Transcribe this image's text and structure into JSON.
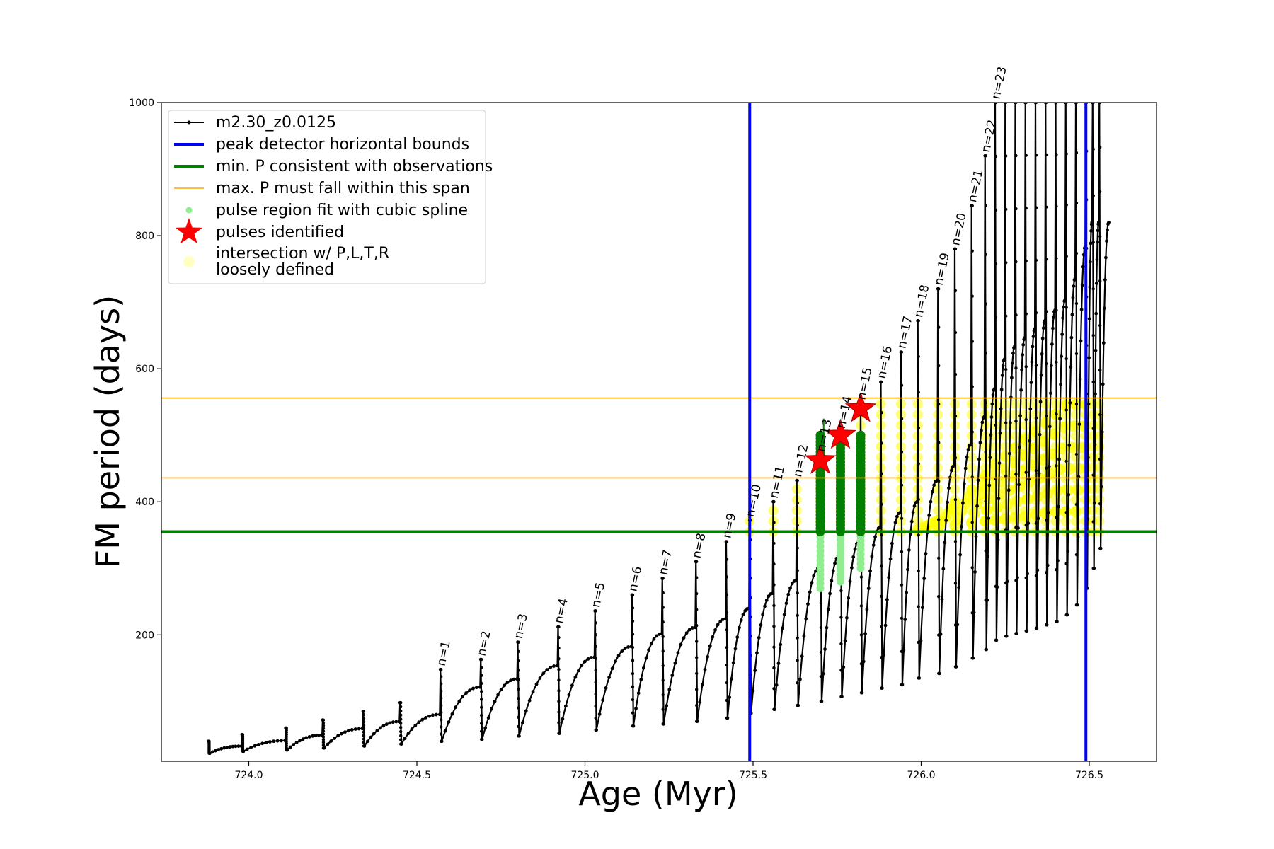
{
  "chart_data": {
    "type": "line",
    "title": "",
    "xlabel": "Age (Myr)",
    "ylabel": "FM period (days)",
    "xlim": [
      723.74,
      726.7
    ],
    "ylim": [
      10,
      1000
    ],
    "xticks": [
      "724.0",
      "724.5",
      "725.0",
      "725.5",
      "726.0",
      "726.5"
    ],
    "xtick_values": [
      724.0,
      724.5,
      725.0,
      725.5,
      726.0,
      726.5
    ],
    "yticks": [
      "200",
      "400",
      "600",
      "800",
      "1000"
    ],
    "ytick_values": [
      200,
      400,
      600,
      800,
      1000
    ],
    "grid": false,
    "legend_position": "upper-left",
    "colors": {
      "track": "#000000",
      "bounds": "#0000ff",
      "min_period": "#007f00",
      "max_span": "#ffa500",
      "spline": "#90ee90",
      "pulses": "#ff0000",
      "intersection": "#ffff00",
      "intersection_legend": "#ffffc0"
    },
    "legend": [
      {
        "label": "m2.30_z0.0125",
        "key": "track"
      },
      {
        "label": "peak detector horizontal bounds",
        "key": "bounds"
      },
      {
        "label": "min. P consistent with observations",
        "key": "min_period"
      },
      {
        "label": "max. P must fall within this span",
        "key": "max_span"
      },
      {
        "label": "pulse region fit with cubic spline",
        "key": "spline"
      },
      {
        "label": "pulses identified",
        "key": "pulses"
      },
      {
        "label": "intersection w/ P,L,T,R",
        "key": "intersection"
      },
      {
        "label": "loosely defined",
        "key": "intersection_note"
      }
    ],
    "vertical_bounds_x": [
      725.49,
      726.49
    ],
    "min_period_y": 355,
    "max_period_span_y": [
      436,
      556
    ],
    "pulses": [
      {
        "label": "n=1",
        "x": 724.57,
        "peak": 148,
        "min": 40
      },
      {
        "label": "n=2",
        "x": 724.69,
        "peak": 163,
        "min": 43
      },
      {
        "label": "n=3",
        "x": 724.8,
        "peak": 189,
        "min": 48
      },
      {
        "label": "n=4",
        "x": 724.92,
        "peak": 212,
        "min": 52
      },
      {
        "label": "n=5",
        "x": 725.03,
        "peak": 236,
        "min": 57
      },
      {
        "label": "n=6",
        "x": 725.14,
        "peak": 260,
        "min": 63
      },
      {
        "label": "n=7",
        "x": 725.23,
        "peak": 285,
        "min": 66
      },
      {
        "label": "n=8",
        "x": 725.33,
        "peak": 310,
        "min": 70
      },
      {
        "label": "n=9",
        "x": 725.42,
        "peak": 340,
        "min": 75
      },
      {
        "label": "n=10",
        "x": 725.49,
        "peak": 372,
        "min": 82
      },
      {
        "label": "n=11",
        "x": 725.56,
        "peak": 400,
        "min": 88
      },
      {
        "label": "n=12",
        "x": 725.63,
        "peak": 432,
        "min": 94
      },
      {
        "label": "n=13",
        "x": 725.7,
        "peak": 470,
        "min": 100
      },
      {
        "label": "n=14",
        "x": 725.76,
        "peak": 505,
        "min": 107
      },
      {
        "label": "n=15",
        "x": 725.82,
        "peak": 548,
        "min": 113
      },
      {
        "label": "n=16",
        "x": 725.88,
        "peak": 580,
        "min": 120
      },
      {
        "label": "n=17",
        "x": 725.94,
        "peak": 625,
        "min": 125
      },
      {
        "label": "n=18",
        "x": 725.99,
        "peak": 672,
        "min": 135
      },
      {
        "label": "n=19",
        "x": 726.05,
        "peak": 720,
        "min": 142
      },
      {
        "label": "n=20",
        "x": 726.1,
        "peak": 780,
        "min": 152
      },
      {
        "label": "n=21",
        "x": 726.15,
        "peak": 845,
        "min": 165
      },
      {
        "label": "n=22",
        "x": 726.19,
        "peak": 920,
        "min": 178
      },
      {
        "label": "n=23",
        "x": 726.22,
        "peak": 1000,
        "min": 192
      }
    ],
    "early_pulses": [
      {
        "x": 723.88,
        "peak": 40,
        "min": 22
      },
      {
        "x": 723.98,
        "peak": 50,
        "min": 25
      },
      {
        "x": 724.11,
        "peak": 60,
        "min": 27
      },
      {
        "x": 724.22,
        "peak": 72,
        "min": 30
      },
      {
        "x": 724.34,
        "peak": 85,
        "min": 33
      },
      {
        "x": 724.45,
        "peak": 98,
        "min": 36
      }
    ],
    "late_pulses": [
      {
        "x": 726.25,
        "peak": 1000,
        "min": 198
      },
      {
        "x": 726.28,
        "peak": 1000,
        "min": 202
      },
      {
        "x": 726.31,
        "peak": 1000,
        "min": 206
      },
      {
        "x": 726.34,
        "peak": 1000,
        "min": 210
      },
      {
        "x": 726.37,
        "peak": 1000,
        "min": 215
      },
      {
        "x": 726.4,
        "peak": 1000,
        "min": 220
      },
      {
        "x": 726.43,
        "peak": 1000,
        "min": 230
      },
      {
        "x": 726.46,
        "peak": 1000,
        "min": 245
      },
      {
        "x": 726.49,
        "peak": 1000,
        "min": 270
      },
      {
        "x": 726.51,
        "peak": 1000,
        "min": 300
      },
      {
        "x": 726.53,
        "peak": 1000,
        "min": 330
      }
    ],
    "pulses_identified": [
      {
        "x": 725.7,
        "y": 462
      },
      {
        "x": 725.76,
        "y": 500
      },
      {
        "x": 725.82,
        "y": 540
      }
    ],
    "spline_regions": [
      {
        "x": 725.7,
        "y_low": 270,
        "y_high": 500
      },
      {
        "x": 725.76,
        "y_low": 280,
        "y_high": 500
      },
      {
        "x": 725.82,
        "y_low": 300,
        "y_high": 500
      }
    ],
    "green_segments": [
      {
        "x": 725.7,
        "y_low": 355,
        "y_high": 500
      },
      {
        "x": 725.76,
        "y_low": 355,
        "y_high": 500
      },
      {
        "x": 725.82,
        "y_low": 355,
        "y_high": 500
      }
    ]
  }
}
